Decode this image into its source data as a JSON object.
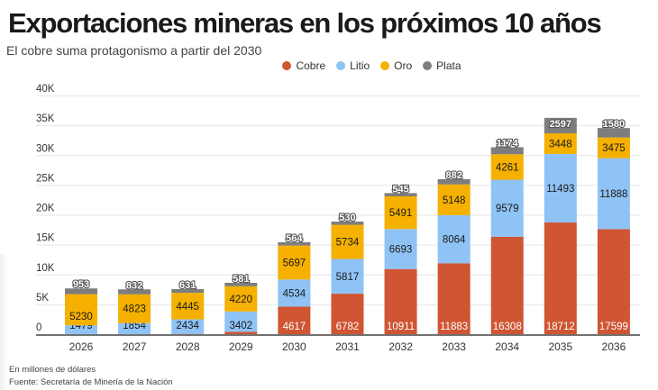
{
  "chart_data": {
    "type": "bar",
    "stacked": true,
    "title": "Exportaciones mineras en los próximos 10 años",
    "subtitle": "El cobre suma protagonismo a partir del 2030",
    "xlabel": "",
    "ylabel": "",
    "ylim": [
      0,
      40000
    ],
    "yticks": [
      0,
      5000,
      10000,
      15000,
      20000,
      25000,
      30000,
      35000,
      40000
    ],
    "ytick_labels": [
      "0",
      "5K",
      "10K",
      "15K",
      "20K",
      "25K",
      "30K",
      "35K",
      "40K"
    ],
    "grid": true,
    "legend_position": "top-center",
    "categories": [
      "2026",
      "2027",
      "2028",
      "2029",
      "2030",
      "2031",
      "2032",
      "2033",
      "2034",
      "2035",
      "2036"
    ],
    "series": [
      {
        "name": "Cobre",
        "color": "#cf5533",
        "values": [
          0,
          0,
          50,
          400,
          4617,
          6782,
          10911,
          11883,
          16308,
          18712,
          17599
        ]
      },
      {
        "name": "Litio",
        "color": "#8fc3f5",
        "values": [
          1479,
          1854,
          2434,
          3402,
          4534,
          5817,
          6693,
          8064,
          9579,
          11493,
          11888
        ]
      },
      {
        "name": "Oro",
        "color": "#f5b000",
        "values": [
          5230,
          4823,
          4445,
          4220,
          5697,
          5734,
          5491,
          5148,
          4261,
          3448,
          3475
        ]
      },
      {
        "name": "Plata",
        "color": "#7d7d7d",
        "values": [
          953,
          832,
          631,
          581,
          564,
          530,
          545,
          882,
          1174,
          2597,
          1580
        ]
      }
    ],
    "notes": [
      "En millones de dólares",
      "Fuente: Secretaría de Minería de la Nación"
    ]
  }
}
